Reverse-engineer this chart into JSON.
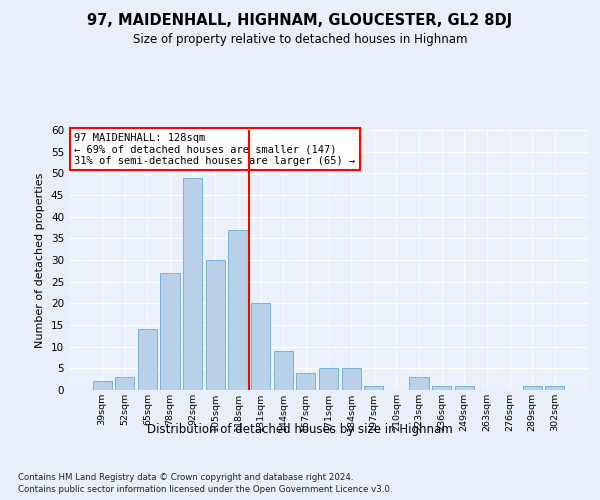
{
  "title1": "97, MAIDENHALL, HIGHNAM, GLOUCESTER, GL2 8DJ",
  "title2": "Size of property relative to detached houses in Highnam",
  "xlabel": "Distribution of detached houses by size in Highnam",
  "ylabel": "Number of detached properties",
  "categories": [
    "39sqm",
    "52sqm",
    "65sqm",
    "78sqm",
    "92sqm",
    "105sqm",
    "118sqm",
    "131sqm",
    "144sqm",
    "157sqm",
    "171sqm",
    "184sqm",
    "197sqm",
    "210sqm",
    "223sqm",
    "236sqm",
    "249sqm",
    "263sqm",
    "276sqm",
    "289sqm",
    "302sqm"
  ],
  "values": [
    2,
    3,
    14,
    27,
    49,
    30,
    37,
    20,
    9,
    4,
    5,
    5,
    1,
    0,
    3,
    1,
    1,
    0,
    0,
    1,
    1
  ],
  "bar_color": "#b8d0e8",
  "bar_edge_color": "#6aaad4",
  "vline_color": "red",
  "annotation_title": "97 MAIDENHALL: 128sqm",
  "annotation_line1": "← 69% of detached houses are smaller (147)",
  "annotation_line2": "31% of semi-detached houses are larger (65) →",
  "annotation_box_color": "white",
  "annotation_box_edge_color": "red",
  "ylim": [
    0,
    60
  ],
  "yticks": [
    0,
    5,
    10,
    15,
    20,
    25,
    30,
    35,
    40,
    45,
    50,
    55,
    60
  ],
  "footer1": "Contains HM Land Registry data © Crown copyright and database right 2024.",
  "footer2": "Contains public sector information licensed under the Open Government Licence v3.0.",
  "bg_color": "#e8eff8",
  "plot_bg_color": "#eaf1fb"
}
